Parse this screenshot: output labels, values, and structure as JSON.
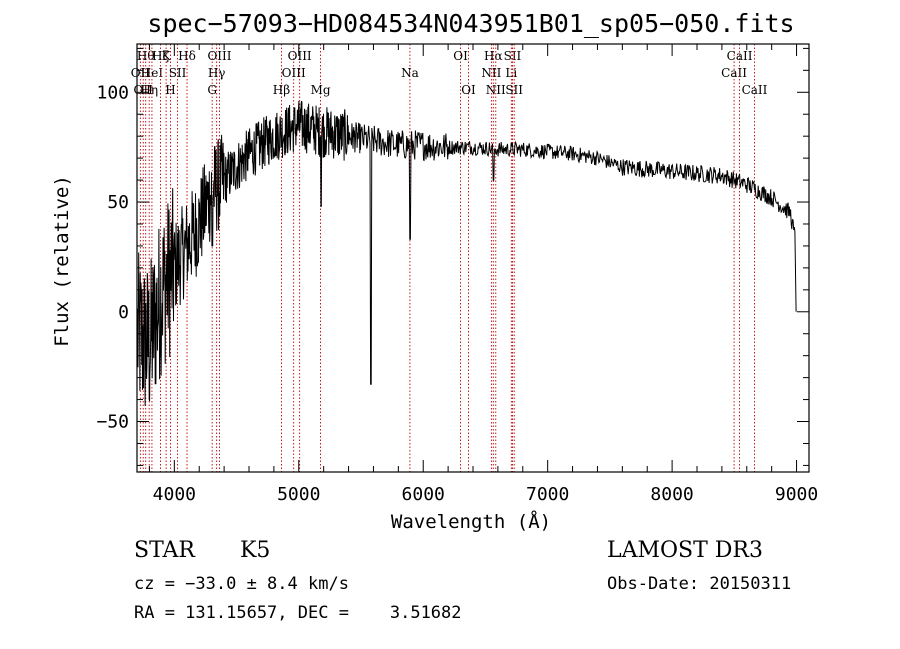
{
  "chart_data": {
    "type": "line",
    "title": "spec−57093−HD084534N043951B01_sp05−050.fits",
    "xlabel": "Wavelength (Å)",
    "ylabel": "Flux (relative)",
    "xlim": [
      3700,
      9100
    ],
    "ylim": [
      -73,
      122
    ],
    "xticks": [
      4000,
      5000,
      6000,
      7000,
      8000,
      9000
    ],
    "xtick_labels": [
      "4000",
      "5000",
      "6000",
      "7000",
      "8000",
      "9000"
    ],
    "yticks": [
      -50,
      0,
      50,
      100
    ],
    "ytick_labels": [
      "−50",
      "0",
      "50",
      "100"
    ],
    "spectrum_anchors": {
      "x": [
        3700,
        3800,
        3900,
        4000,
        4100,
        4200,
        4300,
        4400,
        4600,
        4800,
        5000,
        5200,
        5400,
        5600,
        5800,
        6000,
        6200,
        6400,
        6600,
        6800,
        7000,
        7200,
        7400,
        7600,
        7800,
        8000,
        8200,
        8400,
        8600,
        8800,
        8950,
        9000
      ],
      "y": [
        -10,
        -15,
        10,
        20,
        30,
        40,
        55,
        60,
        72,
        80,
        85,
        82,
        80,
        78,
        76,
        76,
        75,
        75,
        74,
        74,
        73,
        72,
        70,
        66,
        65,
        64,
        63,
        62,
        58,
        52,
        45,
        30
      ]
    },
    "spectrum_dips": [
      {
        "x": 5580,
        "y": -33
      },
      {
        "x": 5895,
        "y": 33
      },
      {
        "x": 6565,
        "y": 60
      },
      {
        "x": 5180,
        "y": 48
      },
      {
        "x": 4305,
        "y": 30
      },
      {
        "x": 8996,
        "y": 0
      }
    ],
    "lines": [
      {
        "wave": 3727,
        "label": "OII",
        "row": 1
      },
      {
        "wave": 3750,
        "label": "OII",
        "row": 2
      },
      {
        "wave": 3770,
        "label": "Hθ",
        "row": 0
      },
      {
        "wave": 3798,
        "label": "Hη",
        "row": 2
      },
      {
        "wave": 3820,
        "label": "HeI",
        "row": 1
      },
      {
        "wave": 3889,
        "label": "Ηζ",
        "row": 0
      },
      {
        "wave": 3934,
        "label": "K",
        "row": 0
      },
      {
        "wave": 3969,
        "label": "H",
        "row": 2
      },
      {
        "wave": 4026,
        "label": "SII",
        "row": 1
      },
      {
        "wave": 4102,
        "label": "Hδ",
        "row": 0
      },
      {
        "wave": 4304,
        "label": "G",
        "row": 2
      },
      {
        "wave": 4340,
        "label": "Hγ",
        "row": 1
      },
      {
        "wave": 4363,
        "label": "OIII",
        "row": 0
      },
      {
        "wave": 4861,
        "label": "Hβ",
        "row": 2
      },
      {
        "wave": 4959,
        "label": "OIII",
        "row": 1
      },
      {
        "wave": 5007,
        "label": "OIII",
        "row": 0
      },
      {
        "wave": 5175,
        "label": "Mg",
        "row": 2
      },
      {
        "wave": 5893,
        "label": "Na",
        "row": 1
      },
      {
        "wave": 6300,
        "label": "OI",
        "row": 0
      },
      {
        "wave": 6364,
        "label": "OI",
        "row": 2
      },
      {
        "wave": 6548,
        "label": "NII",
        "row": 1
      },
      {
        "wave": 6563,
        "label": "Hα",
        "row": 0
      },
      {
        "wave": 6583,
        "label": "NII",
        "row": 2
      },
      {
        "wave": 6708,
        "label": "Li",
        "row": 1
      },
      {
        "wave": 6717,
        "label": "SII",
        "row": 0
      },
      {
        "wave": 6731,
        "label": "SII",
        "row": 2
      },
      {
        "wave": 8498,
        "label": "CaII",
        "row": 1
      },
      {
        "wave": 8542,
        "label": "CaII",
        "row": 0
      },
      {
        "wave": 8662,
        "label": "CaII",
        "row": 2
      }
    ]
  },
  "info": {
    "object_class": "STAR",
    "subclass": "K5",
    "survey": "LAMOST DR3",
    "redshift": "cz = −33.0 ± 8.4 km/s",
    "obs_date": "Obs-Date: 20150311",
    "coords": "RA = 131.15657, DEC =    3.51682"
  },
  "colors": {
    "line_marker": "#c00000",
    "spectrum": "#000000"
  }
}
